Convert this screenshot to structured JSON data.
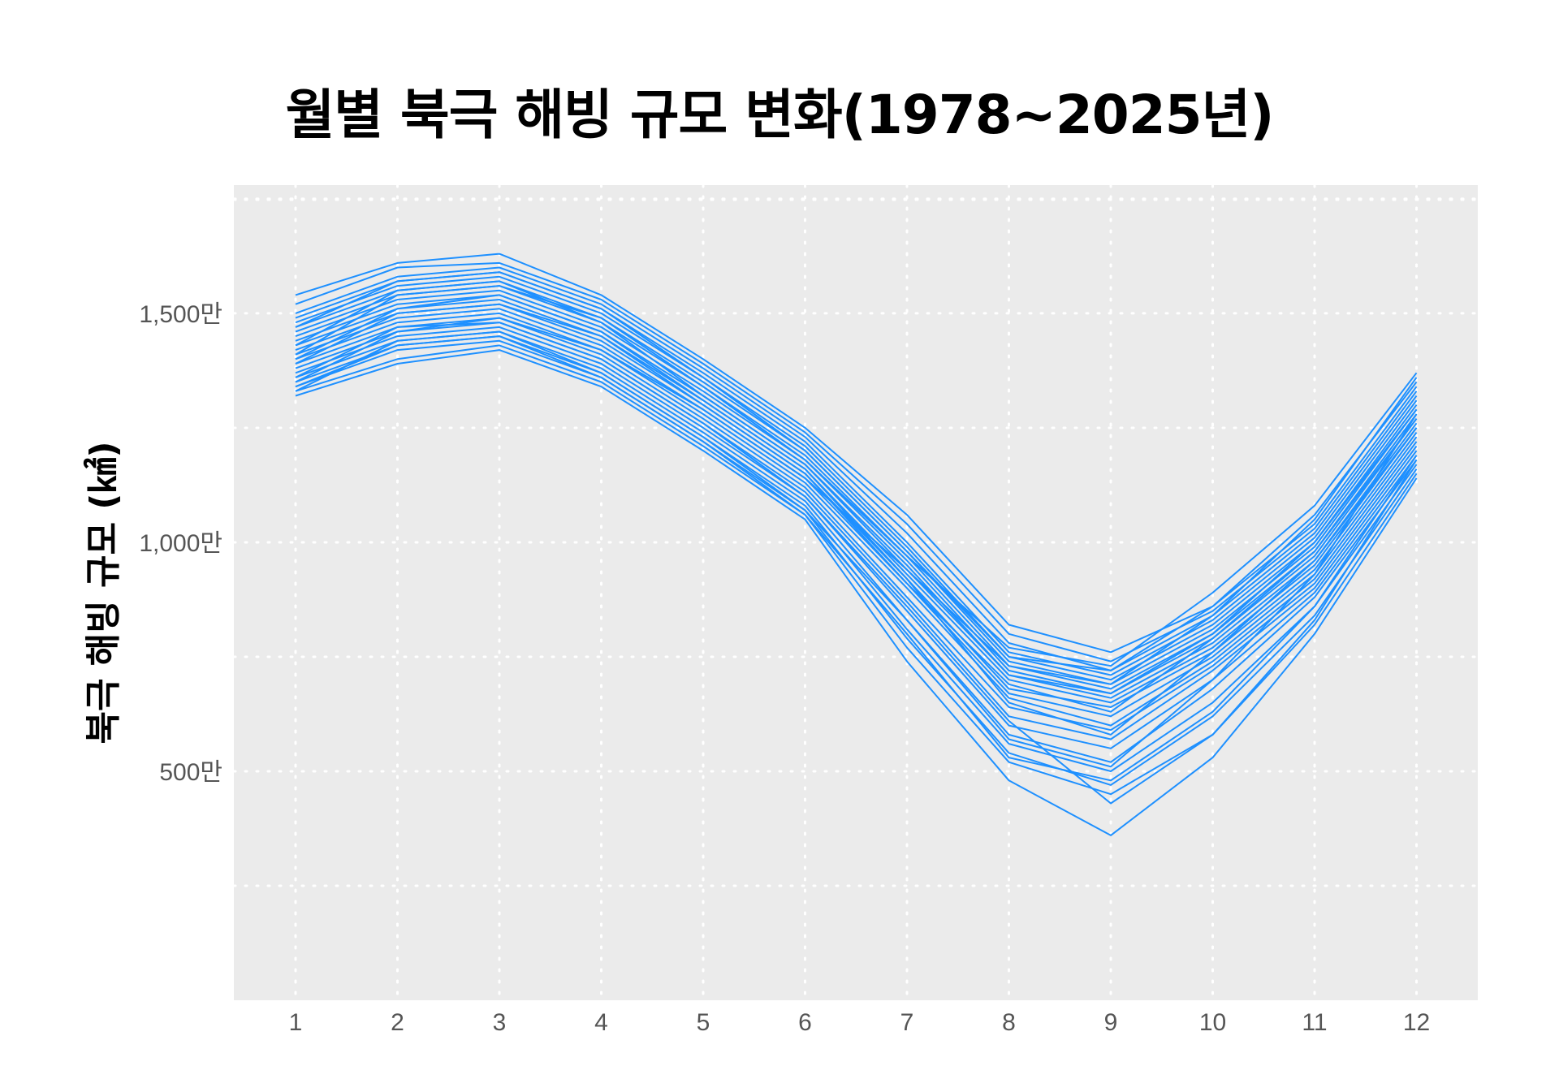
{
  "chart_data": {
    "type": "line",
    "title": "월별 북극 해빙 규모 변화(1978~2025년)",
    "xlabel": "",
    "ylabel": "북극 해빙 규모 (㎢)",
    "categories": [
      "1",
      "2",
      "3",
      "4",
      "5",
      "6",
      "7",
      "8",
      "9",
      "10",
      "11",
      "12"
    ],
    "yticks": [
      {
        "value": 5000000,
        "label": "500만"
      },
      {
        "value": 10000000,
        "label": "1,000만"
      },
      {
        "value": 15000000,
        "label": "1,500만"
      }
    ],
    "ylim": [
      0,
      17800000
    ],
    "grid": true,
    "line_color": "#1E90FF",
    "background_color": "#EBEBEB",
    "series": [
      {
        "values": [
          15400000,
          16100000,
          16300000,
          15400000,
          14000000,
          12500000,
          10600000,
          8200000,
          7600000,
          8600000,
          10400000,
          13400000
        ]
      },
      {
        "values": [
          15200000,
          16000000,
          16100000,
          15300000,
          13900000,
          12400000,
          10400000,
          8000000,
          7400000,
          8500000,
          10300000,
          13300000
        ]
      },
      {
        "values": [
          15000000,
          15800000,
          16000000,
          15200000,
          13800000,
          12300000,
          10200000,
          7800000,
          7200000,
          8400000,
          10200000,
          13200000
        ]
      },
      {
        "values": [
          14900000,
          15700000,
          15900000,
          15100000,
          13700000,
          12200000,
          10000000,
          7600000,
          7100000,
          8300000,
          10100000,
          13100000
        ]
      },
      {
        "values": [
          14800000,
          15600000,
          15800000,
          15000000,
          13600000,
          12100000,
          9900000,
          7500000,
          7000000,
          8200000,
          10000000,
          13000000
        ]
      },
      {
        "values": [
          14700000,
          15500000,
          15700000,
          14900000,
          13500000,
          12000000,
          9800000,
          7400000,
          6900000,
          8100000,
          9900000,
          12900000
        ]
      },
      {
        "values": [
          14600000,
          15400000,
          15600000,
          14800000,
          13400000,
          11900000,
          9700000,
          7300000,
          6800000,
          8000000,
          9800000,
          12800000
        ]
      },
      {
        "values": [
          14500000,
          15300000,
          15500000,
          14700000,
          13300000,
          11800000,
          9600000,
          7200000,
          6700000,
          7900000,
          9700000,
          12700000
        ]
      },
      {
        "values": [
          14400000,
          15200000,
          15400000,
          14600000,
          13200000,
          11700000,
          9500000,
          7100000,
          6600000,
          7800000,
          9600000,
          12600000
        ]
      },
      {
        "values": [
          14300000,
          15100000,
          15300000,
          14500000,
          13100000,
          11600000,
          9300000,
          7000000,
          6500000,
          7700000,
          9500000,
          12500000
        ]
      },
      {
        "values": [
          14200000,
          15000000,
          15200000,
          14400000,
          13000000,
          11500000,
          9200000,
          6800000,
          6400000,
          7600000,
          9400000,
          12400000
        ]
      },
      {
        "values": [
          14100000,
          14900000,
          15100000,
          14300000,
          12900000,
          11400000,
          9100000,
          6700000,
          6200000,
          7500000,
          9300000,
          12300000
        ]
      },
      {
        "values": [
          14000000,
          14800000,
          15000000,
          14200000,
          12800000,
          11300000,
          9000000,
          6600000,
          6000000,
          7400000,
          9200000,
          12200000
        ]
      },
      {
        "values": [
          13900000,
          14700000,
          14900000,
          14100000,
          12700000,
          11200000,
          8800000,
          6400000,
          5900000,
          7300000,
          9100000,
          12100000
        ]
      },
      {
        "values": [
          13800000,
          14600000,
          14800000,
          14000000,
          12600000,
          11100000,
          8700000,
          6200000,
          5700000,
          7200000,
          9000000,
          12000000
        ]
      },
      {
        "values": [
          13700000,
          14500000,
          14700000,
          13900000,
          12500000,
          11000000,
          8500000,
          6000000,
          5500000,
          7000000,
          8900000,
          11900000
        ]
      },
      {
        "values": [
          13600000,
          14400000,
          14600000,
          13800000,
          12400000,
          10900000,
          8300000,
          5800000,
          5200000,
          6800000,
          8800000,
          11800000
        ]
      },
      {
        "values": [
          13500000,
          14300000,
          14500000,
          13700000,
          12300000,
          10800000,
          8100000,
          5600000,
          5000000,
          6500000,
          8600000,
          11700000
        ]
      },
      {
        "values": [
          13400000,
          14200000,
          14400000,
          13600000,
          12200000,
          10700000,
          7900000,
          5400000,
          4700000,
          6200000,
          8400000,
          11600000
        ]
      },
      {
        "values": [
          13300000,
          14000000,
          14300000,
          13500000,
          12100000,
          10600000,
          7700000,
          5200000,
          4500000,
          5800000,
          8200000,
          11500000
        ]
      },
      {
        "values": [
          13200000,
          13900000,
          14200000,
          13400000,
          12000000,
          10500000,
          7400000,
          4800000,
          3600000,
          5300000,
          8000000,
          11400000
        ]
      },
      {
        "values": [
          13500000,
          14600000,
          14900000,
          14200000,
          12900000,
          11400000,
          9400000,
          7300000,
          6900000,
          8400000,
          10500000,
          13600000
        ]
      },
      {
        "values": [
          14100000,
          15400000,
          15600000,
          14900000,
          13400000,
          11800000,
          9700000,
          7700000,
          7300000,
          8900000,
          10800000,
          13700000
        ]
      },
      {
        "values": [
          13300000,
          14400000,
          14600000,
          13700000,
          12300000,
          10700000,
          8300000,
          5700000,
          5100000,
          7000000,
          9300000,
          12800000
        ]
      },
      {
        "values": [
          14700000,
          15700000,
          15900000,
          15100000,
          13600000,
          12000000,
          9800000,
          7500000,
          7200000,
          8600000,
          10600000,
          13500000
        ]
      },
      {
        "values": [
          13900000,
          15000000,
          15200000,
          14500000,
          13000000,
          11500000,
          9100000,
          6900000,
          6300000,
          7900000,
          9800000,
          12700000
        ]
      },
      {
        "values": [
          13600000,
          14700000,
          14800000,
          14000000,
          12600000,
          11000000,
          8600000,
          6100000,
          4300000,
          5800000,
          8300000,
          11800000
        ]
      },
      {
        "values": [
          14300000,
          15500000,
          15700000,
          14800000,
          13200000,
          11700000,
          9400000,
          7100000,
          6700000,
          8000000,
          10000000,
          12900000
        ]
      },
      {
        "values": [
          13400000,
          14300000,
          14500000,
          13600000,
          12200000,
          10600000,
          8000000,
          5300000,
          4800000,
          6300000,
          8600000,
          11900000
        ]
      },
      {
        "values": [
          14000000,
          15100000,
          15400000,
          14600000,
          13100000,
          11600000,
          9200000,
          6500000,
          5800000,
          7600000,
          9600000,
          12500000
        ]
      }
    ]
  }
}
